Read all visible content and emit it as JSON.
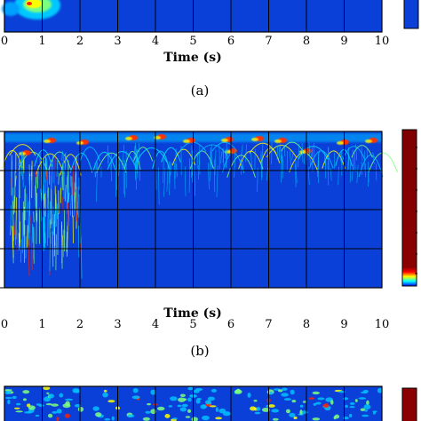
{
  "chart_data": [
    {
      "type": "heatmap",
      "caption": "(a)",
      "xlabel": "Time (s)",
      "x_ticks": [
        "0",
        "1",
        "2",
        "3",
        "4",
        "5",
        "6",
        "7",
        "8",
        "9",
        "10"
      ],
      "xlim": [
        0,
        10
      ],
      "grid": true,
      "colormap": [
        "#00007f",
        "#0000ff",
        "#00bfff",
        "#7fff7f",
        "#ffff00",
        "#ff7f00",
        "#ff0000",
        "#7f0000"
      ],
      "background": "#0a3fd8"
    },
    {
      "type": "heatmap",
      "caption": "(b)",
      "xlabel": "Time (s)",
      "x_ticks": [
        "0",
        "1",
        "2",
        "3",
        "4",
        "5",
        "6",
        "7",
        "8",
        "9",
        "10"
      ],
      "xlim": [
        0,
        10
      ],
      "grid": true,
      "colormap": [
        "#00007f",
        "#0000ff",
        "#00bfff",
        "#7fff7f",
        "#ffff00",
        "#ff7f00",
        "#ff0000",
        "#7f0000"
      ],
      "background": "#0a3fd8"
    },
    {
      "type": "heatmap",
      "caption": "",
      "xlabel": "",
      "x_ticks": [],
      "xlim": [
        0,
        10
      ],
      "grid": true,
      "colormap": [
        "#00007f",
        "#0000ff",
        "#00bfff",
        "#7fff7f",
        "#ffff00",
        "#ff7f00",
        "#ff0000",
        "#7f0000"
      ],
      "background": "#0a3fd8"
    }
  ]
}
